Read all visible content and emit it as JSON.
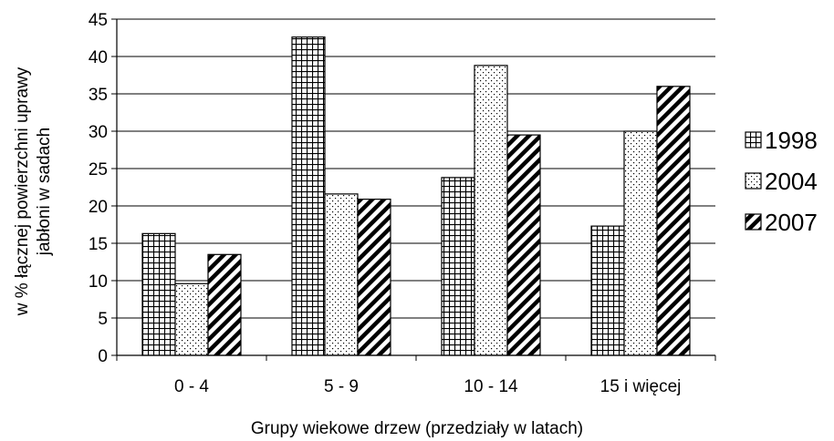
{
  "chart_data": {
    "type": "bar",
    "title": "",
    "xlabel": "Grupy wiekowe drzew (przedziały w latach)",
    "ylabel_lines": [
      "w % łącznej powierzchni uprawy",
      "jabłoni w sadach"
    ],
    "categories": [
      "0 - 4",
      "5 - 9",
      "10 - 14",
      "15 i więcej"
    ],
    "ylim": [
      0,
      45
    ],
    "yticks": [
      0,
      5,
      10,
      15,
      20,
      25,
      30,
      35,
      40,
      45
    ],
    "grid": true,
    "legend_position": "right",
    "series": [
      {
        "name": "1998",
        "pattern": "crosshatch",
        "values": [
          16.3,
          42.6,
          23.8,
          17.3
        ]
      },
      {
        "name": "2004",
        "pattern": "dots",
        "values": [
          9.6,
          21.6,
          38.8,
          30.0
        ]
      },
      {
        "name": "2007",
        "pattern": "diagonal",
        "values": [
          13.5,
          20.9,
          29.5,
          36.0
        ]
      }
    ]
  }
}
